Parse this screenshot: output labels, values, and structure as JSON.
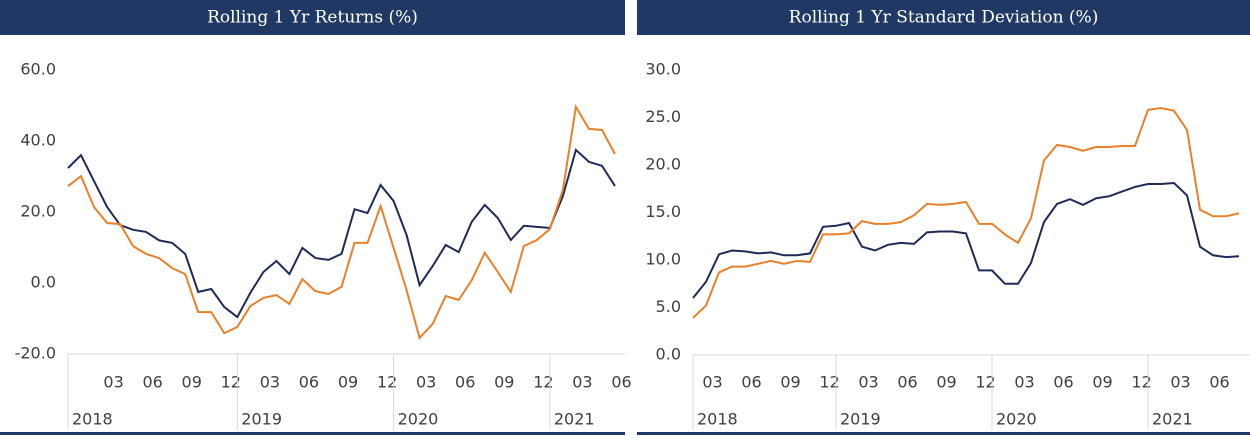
{
  "chart_data": [
    {
      "type": "line",
      "title": "Rolling 1 Yr Returns (%)",
      "categories": [
        null,
        null,
        null,
        "03",
        null,
        null,
        "06",
        null,
        null,
        "09",
        null,
        null,
        "12",
        null,
        null,
        "03",
        null,
        null,
        "06",
        null,
        null,
        "09",
        null,
        null,
        "12",
        null,
        null,
        "03",
        null,
        null,
        "06",
        null,
        null,
        "09",
        null,
        null,
        "12",
        null,
        null,
        "03",
        null,
        null,
        "06"
      ],
      "years": [
        "2018",
        "2019",
        "2020",
        "2021"
      ],
      "ylim": [
        -20,
        60
      ],
      "yticks": [
        {
          "value": -20,
          "label": "-20.0"
        },
        {
          "value": 0,
          "label": "0.0"
        },
        {
          "value": 20,
          "label": "20.0"
        },
        {
          "value": 40,
          "label": "40.0"
        },
        {
          "value": 60,
          "label": "60.0"
        }
      ],
      "series": [
        {
          "color": "#1f2a5a",
          "values": [
            32.4,
            36,
            28.7,
            21.4,
            16.3,
            15,
            14.4,
            12,
            11.3,
            8.2,
            -2.5,
            -1.7,
            -6.8,
            -9.6,
            -2.8,
            3.1,
            6.2,
            2.5,
            9.9,
            7,
            6.5,
            8.2,
            20.8,
            19.7,
            27.6,
            23.1,
            13.5,
            -0.6,
            4.8,
            10.7,
            8.7,
            17.2,
            22,
            18.3,
            12.1,
            16.1,
            15.8,
            15.5,
            24.5,
            37.5,
            34.1,
            33,
            27.3
          ]
        },
        {
          "color": "#e8812a",
          "values": [
            27.3,
            30.1,
            21.4,
            16.9,
            16.6,
            10.4,
            8.2,
            7,
            4.2,
            2.5,
            -8.2,
            -8.2,
            -14.1,
            -12.4,
            -6.5,
            -4.2,
            -3.4,
            -5.9,
            1.1,
            -2.3,
            -3.1,
            -1.1,
            11.3,
            11.3,
            21.7,
            9.9,
            -2,
            -15.5,
            -11.5,
            -3.7,
            -4.8,
            0.8,
            8.5,
            3.1,
            -2.5,
            10.4,
            12.1,
            15.2,
            26.2,
            49.6,
            43.4,
            43.1,
            36.3
          ]
        }
      ]
    },
    {
      "type": "line",
      "title": "Rolling 1 Yr Standard Deviation (%)",
      "categories": [
        null,
        "03",
        null,
        null,
        "06",
        null,
        null,
        "09",
        null,
        null,
        "12",
        null,
        null,
        "03",
        null,
        null,
        "06",
        null,
        null,
        "09",
        null,
        null,
        "12",
        null,
        null,
        "03",
        null,
        null,
        "06",
        null,
        null,
        "09",
        null,
        null,
        "12",
        null,
        null,
        "03",
        null,
        null,
        "06",
        null,
        null
      ],
      "years": [
        "2018",
        "2019",
        "2020",
        "2021"
      ],
      "ylim": [
        0,
        30
      ],
      "yticks": [
        {
          "value": 0,
          "label": "0.0"
        },
        {
          "value": 5,
          "label": "5.0"
        },
        {
          "value": 10,
          "label": "10.0"
        },
        {
          "value": 15,
          "label": "15.0"
        },
        {
          "value": 20,
          "label": "20.0"
        },
        {
          "value": 25,
          "label": "25.0"
        },
        {
          "value": 30,
          "label": "30.0"
        }
      ],
      "series": [
        {
          "color": "#1f2a5a",
          "values": [
            6,
            7.7,
            10.6,
            11,
            10.9,
            10.7,
            10.8,
            10.5,
            10.5,
            10.7,
            13.5,
            13.6,
            13.9,
            11.4,
            11,
            11.6,
            11.8,
            11.7,
            12.9,
            13,
            13,
            12.8,
            8.9,
            8.9,
            7.5,
            7.5,
            9.7,
            14,
            15.9,
            16.4,
            15.8,
            16.5,
            16.7,
            17.2,
            17.7,
            18,
            18,
            18.1,
            16.8,
            11.4,
            10.5,
            10.3,
            10.4
          ]
        },
        {
          "color": "#e8812a",
          "values": [
            3.9,
            5.2,
            8.7,
            9.3,
            9.3,
            9.6,
            9.9,
            9.6,
            9.9,
            9.8,
            12.7,
            12.7,
            12.8,
            14.1,
            13.8,
            13.8,
            14,
            14.7,
            15.9,
            15.8,
            15.9,
            16.1,
            13.8,
            13.8,
            12.7,
            11.8,
            14.4,
            20.5,
            22.1,
            21.9,
            21.5,
            21.9,
            21.9,
            22,
            22,
            25.8,
            26,
            25.7,
            23.7,
            15.3,
            14.6,
            14.6,
            14.9
          ]
        }
      ]
    }
  ]
}
